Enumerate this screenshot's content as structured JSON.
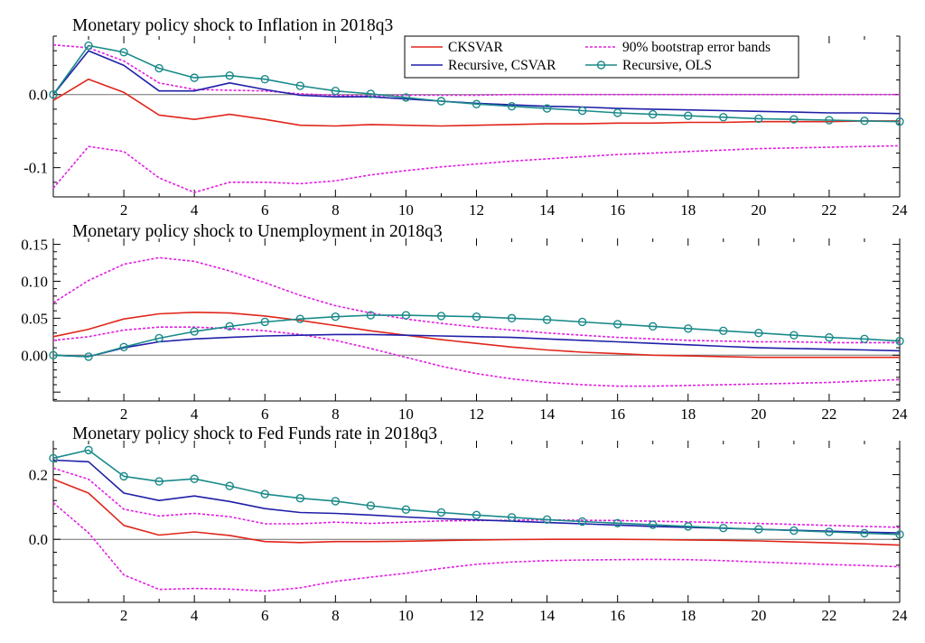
{
  "chart_data": [
    {
      "type": "line",
      "title": "Monetary policy shock to Inflation in 2018q3",
      "x": [
        0,
        1,
        2,
        3,
        4,
        5,
        6,
        7,
        8,
        9,
        10,
        11,
        12,
        13,
        14,
        15,
        16,
        17,
        18,
        19,
        20,
        21,
        22,
        23,
        24
      ],
      "xlim": [
        0,
        24
      ],
      "xticks": [
        2,
        4,
        6,
        8,
        10,
        12,
        14,
        16,
        18,
        20,
        22,
        24
      ],
      "xtick_labels": [
        "2",
        "4",
        "6",
        "8",
        "10",
        "12",
        "14",
        "16",
        "18",
        "20",
        "22",
        "24"
      ],
      "ylim": [
        -0.14,
        0.08
      ],
      "yticks": [
        0.0,
        -0.1
      ],
      "ytick_labels": [
        "0.0",
        "-0.1"
      ],
      "legend": {
        "position": "top-right"
      },
      "series": [
        {
          "key": "ckv",
          "name": "CKSVAR",
          "color": "#e0261b",
          "style": "solid",
          "values": [
            -0.008,
            0.021,
            0.003,
            -0.028,
            -0.034,
            -0.027,
            -0.034,
            -0.042,
            -0.043,
            -0.041,
            -0.042,
            -0.043,
            -0.042,
            -0.041,
            -0.04,
            -0.04,
            -0.039,
            -0.039,
            -0.038,
            -0.038,
            -0.037,
            -0.037,
            -0.037,
            -0.036,
            -0.036
          ]
        },
        {
          "key": "rcs",
          "name": "Recursive, CSVAR",
          "color": "#1f1fa8",
          "style": "solid",
          "values": [
            0.0,
            0.06,
            0.04,
            0.005,
            0.005,
            0.016,
            0.007,
            -0.001,
            -0.003,
            -0.003,
            -0.006,
            -0.009,
            -0.012,
            -0.014,
            -0.016,
            -0.017,
            -0.019,
            -0.02,
            -0.021,
            -0.022,
            -0.023,
            -0.024,
            -0.025,
            -0.025,
            -0.026
          ]
        },
        {
          "key": "ols",
          "name": "Recursive, OLS",
          "color": "#1a8a8a",
          "style": "solid-marker",
          "values": [
            0.0,
            0.067,
            0.058,
            0.036,
            0.023,
            0.026,
            0.021,
            0.012,
            0.005,
            0.001,
            -0.004,
            -0.009,
            -0.013,
            -0.016,
            -0.019,
            -0.022,
            -0.025,
            -0.027,
            -0.029,
            -0.031,
            -0.033,
            -0.034,
            -0.035,
            -0.036,
            -0.037
          ]
        },
        {
          "key": "band_up",
          "name": "90% bootstrap error bands",
          "color": "#e21ee2",
          "style": "dotted",
          "values": [
            0.068,
            0.064,
            0.046,
            0.016,
            0.007,
            0.006,
            0.005,
            0.001,
            -0.001,
            -0.002,
            -0.001,
            -0.001,
            -0.001,
            0.0,
            0.0,
            0.0,
            0.0,
            0.0,
            0.0,
            0.0,
            0.0,
            0.0,
            0.0,
            0.0,
            0.0
          ]
        },
        {
          "key": "band_lo",
          "name": "",
          "color": "#e21ee2",
          "style": "dotted",
          "values": [
            -0.128,
            -0.071,
            -0.078,
            -0.114,
            -0.134,
            -0.12,
            -0.12,
            -0.122,
            -0.118,
            -0.11,
            -0.104,
            -0.099,
            -0.095,
            -0.091,
            -0.088,
            -0.085,
            -0.082,
            -0.08,
            -0.078,
            -0.076,
            -0.074,
            -0.073,
            -0.072,
            -0.071,
            -0.07
          ]
        }
      ]
    },
    {
      "type": "line",
      "title": "Monetary policy shock to Unemployment in 2018q3",
      "x": [
        0,
        1,
        2,
        3,
        4,
        5,
        6,
        7,
        8,
        9,
        10,
        11,
        12,
        13,
        14,
        15,
        16,
        17,
        18,
        19,
        20,
        21,
        22,
        23,
        24
      ],
      "xlim": [
        0,
        24
      ],
      "xticks": [
        2,
        4,
        6,
        8,
        10,
        12,
        14,
        16,
        18,
        20,
        22,
        24
      ],
      "xtick_labels": [
        "2",
        "4",
        "6",
        "8",
        "10",
        "12",
        "14",
        "16",
        "18",
        "20",
        "22",
        "24"
      ],
      "ylim": [
        -0.062,
        0.158
      ],
      "yticks": [
        0.15,
        0.1,
        0.05,
        0.0
      ],
      "ytick_labels": [
        "0.15",
        "0.10",
        "0.05",
        "0.00"
      ],
      "series": [
        {
          "key": "ckv",
          "name": "CKSVAR",
          "color": "#e0261b",
          "style": "solid",
          "values": [
            0.025,
            0.035,
            0.049,
            0.056,
            0.058,
            0.057,
            0.053,
            0.047,
            0.04,
            0.033,
            0.027,
            0.021,
            0.016,
            0.011,
            0.007,
            0.004,
            0.002,
            0.0,
            -0.001,
            -0.002,
            -0.003,
            -0.003,
            -0.003,
            -0.003,
            -0.003
          ]
        },
        {
          "key": "rcs",
          "name": "Recursive, CSVAR",
          "color": "#1f1fa8",
          "style": "solid",
          "values": [
            0.0,
            -0.002,
            0.01,
            0.018,
            0.022,
            0.024,
            0.026,
            0.027,
            0.028,
            0.028,
            0.027,
            0.026,
            0.025,
            0.024,
            0.022,
            0.02,
            0.018,
            0.016,
            0.014,
            0.012,
            0.01,
            0.009,
            0.008,
            0.007,
            0.006
          ]
        },
        {
          "key": "ols",
          "name": "Recursive, OLS",
          "color": "#1a8a8a",
          "style": "solid-marker",
          "values": [
            0.0,
            -0.002,
            0.011,
            0.023,
            0.032,
            0.039,
            0.045,
            0.049,
            0.052,
            0.054,
            0.054,
            0.053,
            0.052,
            0.05,
            0.048,
            0.045,
            0.042,
            0.039,
            0.036,
            0.033,
            0.03,
            0.027,
            0.024,
            0.022,
            0.019
          ]
        },
        {
          "key": "band_up",
          "name": "90% bootstrap error bands",
          "color": "#e21ee2",
          "style": "dotted",
          "values": [
            0.071,
            0.101,
            0.123,
            0.132,
            0.127,
            0.114,
            0.098,
            0.081,
            0.067,
            0.057,
            0.049,
            0.043,
            0.038,
            0.034,
            0.03,
            0.027,
            0.024,
            0.022,
            0.02,
            0.019,
            0.018,
            0.018,
            0.017,
            0.017,
            0.017
          ]
        },
        {
          "key": "band_lo",
          "name": "",
          "color": "#e21ee2",
          "style": "dotted",
          "values": [
            0.02,
            0.025,
            0.034,
            0.038,
            0.038,
            0.036,
            0.033,
            0.028,
            0.02,
            0.009,
            -0.003,
            -0.015,
            -0.025,
            -0.032,
            -0.037,
            -0.04,
            -0.042,
            -0.042,
            -0.041,
            -0.04,
            -0.039,
            -0.038,
            -0.037,
            -0.035,
            -0.033
          ]
        }
      ]
    },
    {
      "type": "line",
      "title": "Monetary policy shock to Fed Funds rate in 2018q3",
      "x": [
        0,
        1,
        2,
        3,
        4,
        5,
        6,
        7,
        8,
        9,
        10,
        11,
        12,
        13,
        14,
        15,
        16,
        17,
        18,
        19,
        20,
        21,
        22,
        23,
        24
      ],
      "xlim": [
        0,
        24
      ],
      "xticks": [
        2,
        4,
        6,
        8,
        10,
        12,
        14,
        16,
        18,
        20,
        22,
        24
      ],
      "xtick_labels": [
        "2",
        "4",
        "6",
        "8",
        "10",
        "12",
        "14",
        "16",
        "18",
        "20",
        "22",
        "24"
      ],
      "ylim": [
        -0.195,
        0.305
      ],
      "yticks": [
        0.2,
        0.0
      ],
      "ytick_labels": [
        "0.2",
        "0.0"
      ],
      "series": [
        {
          "key": "ckv",
          "name": "CKSVAR",
          "color": "#e0261b",
          "style": "solid",
          "values": [
            0.186,
            0.143,
            0.043,
            0.013,
            0.023,
            0.012,
            -0.007,
            -0.01,
            -0.007,
            -0.007,
            -0.006,
            -0.004,
            -0.002,
            -0.001,
            0.0,
            0.0,
            0.0,
            -0.001,
            -0.002,
            -0.003,
            -0.005,
            -0.008,
            -0.011,
            -0.014,
            -0.018
          ]
        },
        {
          "key": "rcs",
          "name": "Recursive, CSVAR",
          "color": "#1f1fa8",
          "style": "solid",
          "values": [
            0.245,
            0.24,
            0.143,
            0.12,
            0.134,
            0.117,
            0.095,
            0.083,
            0.08,
            0.075,
            0.069,
            0.064,
            0.06,
            0.056,
            0.052,
            0.048,
            0.044,
            0.04,
            0.037,
            0.034,
            0.031,
            0.028,
            0.025,
            0.022,
            0.02
          ]
        },
        {
          "key": "ols",
          "name": "Recursive, OLS",
          "color": "#1a8a8a",
          "style": "solid-marker",
          "values": [
            0.251,
            0.276,
            0.195,
            0.179,
            0.187,
            0.165,
            0.14,
            0.127,
            0.118,
            0.104,
            0.092,
            0.083,
            0.075,
            0.068,
            0.061,
            0.055,
            0.05,
            0.045,
            0.04,
            0.035,
            0.031,
            0.027,
            0.023,
            0.019,
            0.015
          ]
        },
        {
          "key": "band_up",
          "name": "90% bootstrap error bands",
          "color": "#e21ee2",
          "style": "dotted",
          "values": [
            0.22,
            0.186,
            0.093,
            0.072,
            0.08,
            0.07,
            0.048,
            0.048,
            0.053,
            0.049,
            0.053,
            0.057,
            0.058,
            0.059,
            0.06,
            0.059,
            0.058,
            0.056,
            0.054,
            0.052,
            0.049,
            0.046,
            0.043,
            0.04,
            0.037
          ]
        },
        {
          "key": "band_lo",
          "name": "",
          "color": "#e21ee2",
          "style": "dotted",
          "values": [
            0.113,
            0.02,
            -0.11,
            -0.155,
            -0.152,
            -0.154,
            -0.16,
            -0.15,
            -0.13,
            -0.117,
            -0.105,
            -0.09,
            -0.077,
            -0.07,
            -0.066,
            -0.064,
            -0.063,
            -0.062,
            -0.063,
            -0.066,
            -0.07,
            -0.074,
            -0.078,
            -0.081,
            -0.085
          ]
        }
      ]
    }
  ],
  "legend": {
    "entries": [
      {
        "label": "CKSVAR",
        "color": "#e0261b",
        "style": "solid"
      },
      {
        "label": "90% bootstrap error bands",
        "color": "#e21ee2",
        "style": "dotted"
      },
      {
        "label": "Recursive, CSVAR",
        "color": "#1f1fa8",
        "style": "solid"
      },
      {
        "label": "Recursive, OLS",
        "color": "#1a8a8a",
        "style": "solid-marker"
      }
    ]
  }
}
